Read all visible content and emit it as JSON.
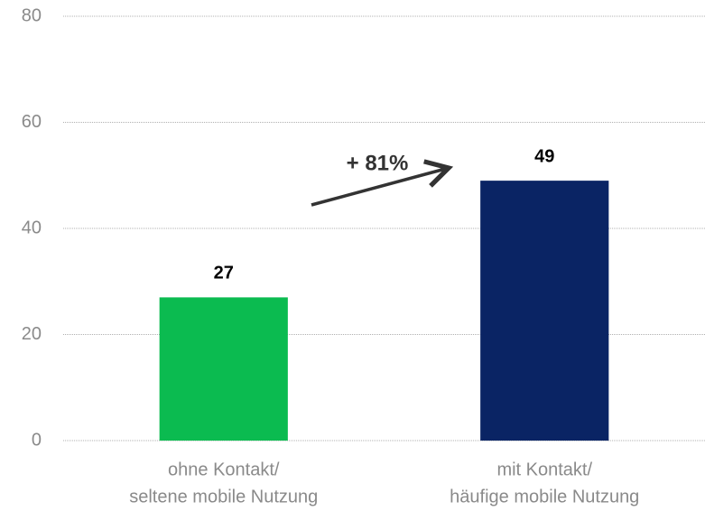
{
  "chart_data": {
    "type": "bar",
    "categories": [
      [
        "ohne Kontakt/",
        "seltene mobile Nutzung"
      ],
      [
        "mit Kontakt/",
        "häufige mobile Nutzung"
      ]
    ],
    "values": [
      27,
      49
    ],
    "colors": [
      "#0bbb50",
      "#0a2464"
    ],
    "ylim": [
      0,
      80
    ],
    "yticks": [
      0,
      20,
      40,
      60,
      80
    ],
    "grid": true,
    "annotation": "+ 81%"
  }
}
